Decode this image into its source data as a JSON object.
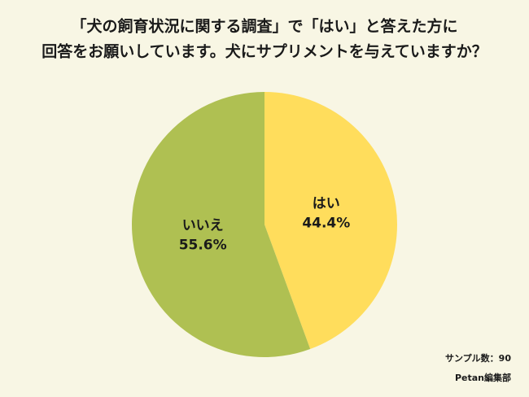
{
  "chart_data": {
    "type": "pie",
    "title": [
      "「犬の飼育状況に関する調査」で「はい」と答えた方に",
      "回答をお願いしています。犬にサプリメントを与えていますか？"
    ],
    "categories": [
      "はい",
      "いいえ"
    ],
    "values": [
      44.4,
      55.6
    ],
    "value_labels": [
      "44.4%",
      "55.6%"
    ],
    "colors": [
      "#ffdd5c",
      "#afc052"
    ],
    "notes": [
      "サンプル数：90",
      "Petan編集部"
    ]
  }
}
